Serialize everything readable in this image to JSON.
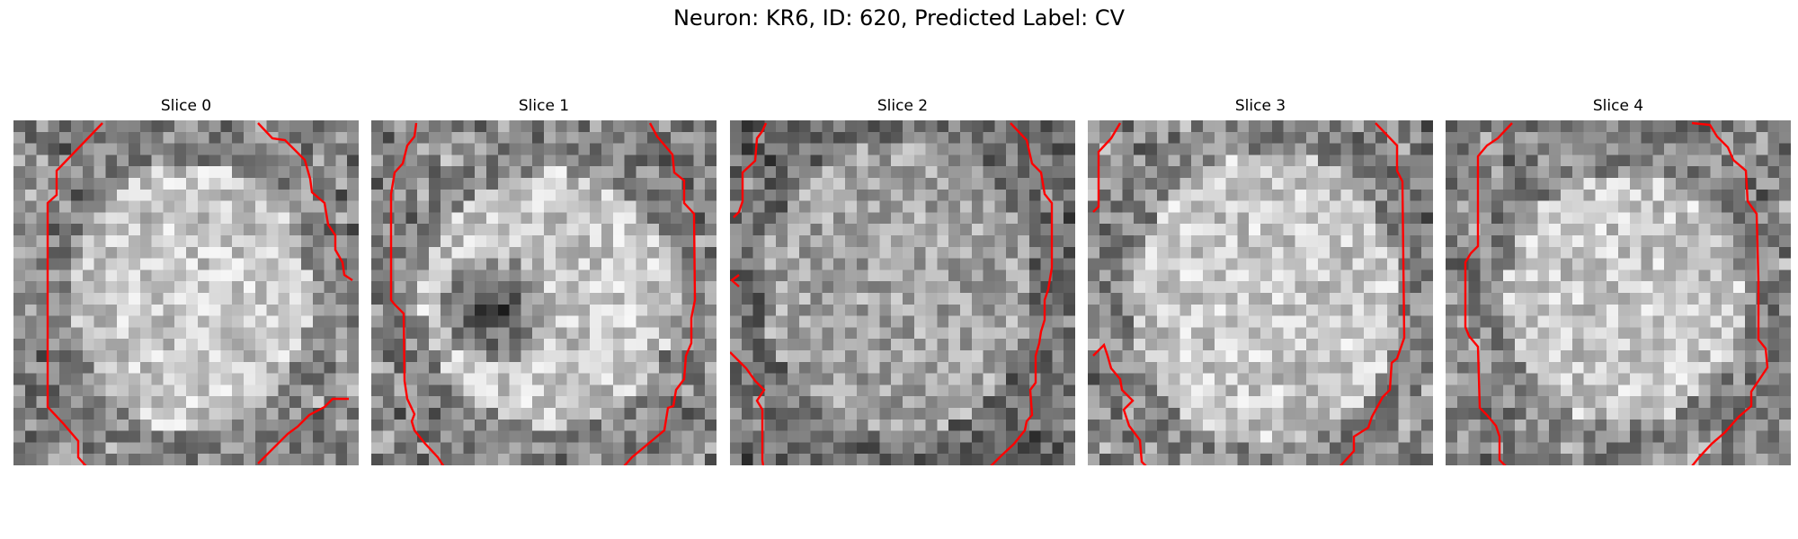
{
  "figure": {
    "title": "Neuron: KR6, ID: 620, Predicted Label: CV"
  },
  "colors": {
    "contour": "#ff0000",
    "background": "#ffffff"
  },
  "panels": [
    {
      "title": "Slice 0"
    },
    {
      "title": "Slice 1"
    },
    {
      "title": "Slice 2"
    },
    {
      "title": "Slice 3"
    },
    {
      "title": "Slice 4"
    }
  ]
}
